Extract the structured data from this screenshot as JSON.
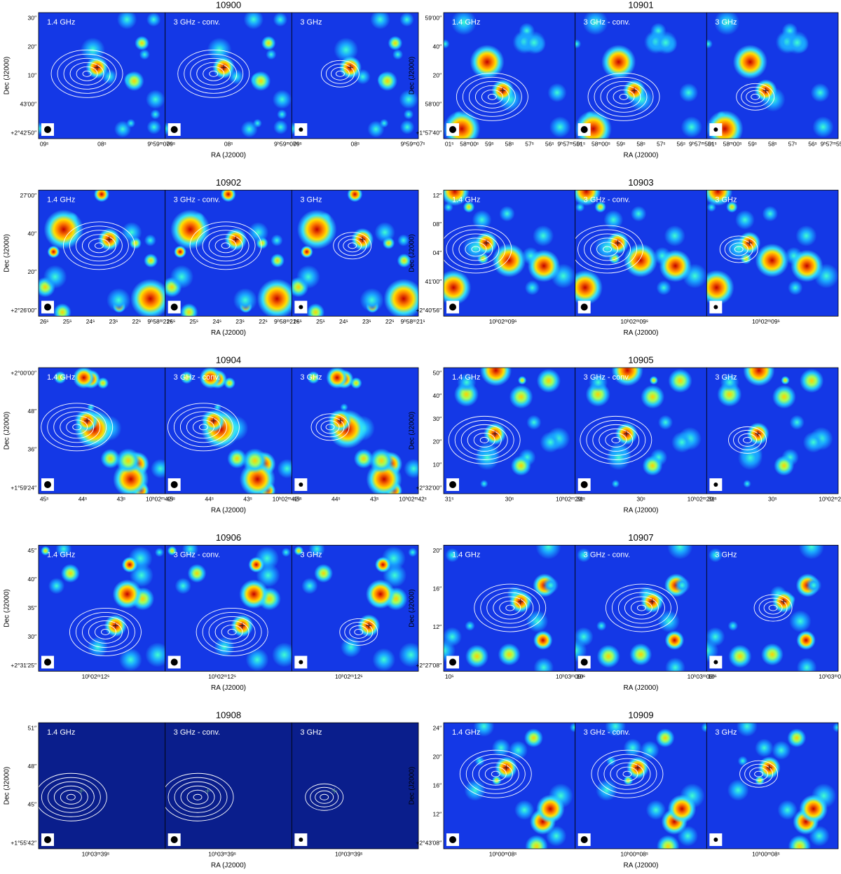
{
  "panels": [
    {
      "title": "10900",
      "subpanels": [
        "1.4 GHz",
        "3 GHz - conv.",
        "3 GHz"
      ],
      "dec_label": "Dec (J2000)",
      "ra_label": "RA (J2000)",
      "yticks": [
        "30″",
        "20″",
        "10″",
        "43′00″",
        "+2°42′50″"
      ],
      "xticks": [
        "09ˢ",
        "08ˢ",
        "9ʰ59ᵐ07ˢ"
      ]
    },
    {
      "title": "10901",
      "subpanels": [
        "1.4 GHz",
        "3 GHz - conv.",
        "3 GHz"
      ],
      "dec_label": "Dec (J2000)",
      "ra_label": "RA (J2000)",
      "yticks": [
        "59′00″",
        "40″",
        "20″",
        "58′00″",
        "+1°57′40″"
      ],
      "xticks": [
        "01ˢ",
        "58ᵐ00ˢ",
        "59ˢ",
        "58ˢ",
        "57ˢ",
        "56ˢ",
        "9ʰ57ᵐ55ˢ"
      ]
    },
    {
      "title": "10902",
      "subpanels": [
        "1.4 GHz",
        "3 GHz - conv.",
        "3 GHz"
      ],
      "dec_label": "Dec (J2000)",
      "ra_label": "RA (J2000)",
      "yticks": [
        "27′00″",
        "40″",
        "20″",
        "+2°26′00″"
      ],
      "xticks": [
        "26ˢ",
        "25ˢ",
        "24ˢ",
        "23ˢ",
        "22ˢ",
        "9ʰ58ᵐ21ˢ"
      ]
    },
    {
      "title": "10903",
      "subpanels": [
        "1.4 GHz",
        "3 GHz - conv.",
        "3 GHz"
      ],
      "dec_label": "Dec (J2000)",
      "ra_label": "RA (J2000)",
      "yticks": [
        "12″",
        "08″",
        "04″",
        "41′00″",
        "+2°40′56″"
      ],
      "xticks": [
        "10ʰ02ᵐ09ˢ"
      ]
    },
    {
      "title": "10904",
      "subpanels": [
        "1.4 GHz",
        "3 GHz - conv.",
        "3 GHz"
      ],
      "dec_label": "Dec (J2000)",
      "ra_label": "RA (J2000)",
      "yticks": [
        "+2°00′00″",
        "48″",
        "36″",
        "+1°59′24″"
      ],
      "xticks": [
        "45ˢ",
        "44ˢ",
        "43ˢ",
        "10ʰ02ᵐ42ˢ"
      ]
    },
    {
      "title": "10905",
      "subpanels": [
        "1.4 GHz",
        "3 GHz - conv.",
        "3 GHz"
      ],
      "dec_label": "Dec (J2000)",
      "ra_label": "RA (J2000)",
      "yticks": [
        "50″",
        "40″",
        "30″",
        "20″",
        "10″",
        "+2°32′00″"
      ],
      "xticks": [
        "31ˢ",
        "30ˢ",
        "10ʰ02ᵐ29ˢ"
      ]
    },
    {
      "title": "10906",
      "subpanels": [
        "1.4 GHz",
        "3 GHz - conv.",
        "3 GHz"
      ],
      "dec_label": "Dec (J2000)",
      "ra_label": "RA (J2000)",
      "yticks": [
        "45″",
        "40″",
        "35″",
        "30″",
        "+2°31′25″"
      ],
      "xticks": [
        "10ʰ02ᵐ12ˢ"
      ]
    },
    {
      "title": "10907",
      "subpanels": [
        "1.4 GHz",
        "3 GHz - conv.",
        "3 GHz"
      ],
      "dec_label": "Dec (J2000)",
      "ra_label": "RA (J2000)",
      "yticks": [
        "20″",
        "16″",
        "12″",
        "+2°27′08″"
      ],
      "xticks": [
        "10ˢ",
        "10ʰ03ᵐ09ˢ"
      ]
    },
    {
      "title": "10908",
      "subpanels": [
        "1.4 GHz",
        "3 GHz - conv.",
        "3 GHz"
      ],
      "dec_label": "Dec (J2000)",
      "ra_label": "RA (J2000)",
      "yticks": [
        "51″",
        "48″",
        "45″",
        "+1°55′42″"
      ],
      "xticks": [
        "10ʰ03ᵐ39ˢ"
      ]
    },
    {
      "title": "10909",
      "subpanels": [
        "1.4 GHz",
        "3 GHz - conv.",
        "3 GHz"
      ],
      "dec_label": "Dec (J2000)",
      "ra_label": "RA (J2000)",
      "yticks": [
        "24″",
        "20″",
        "16″",
        "12″",
        "+2°43′08″"
      ],
      "xticks": [
        "10ʰ00ᵐ08ˢ"
      ]
    }
  ]
}
